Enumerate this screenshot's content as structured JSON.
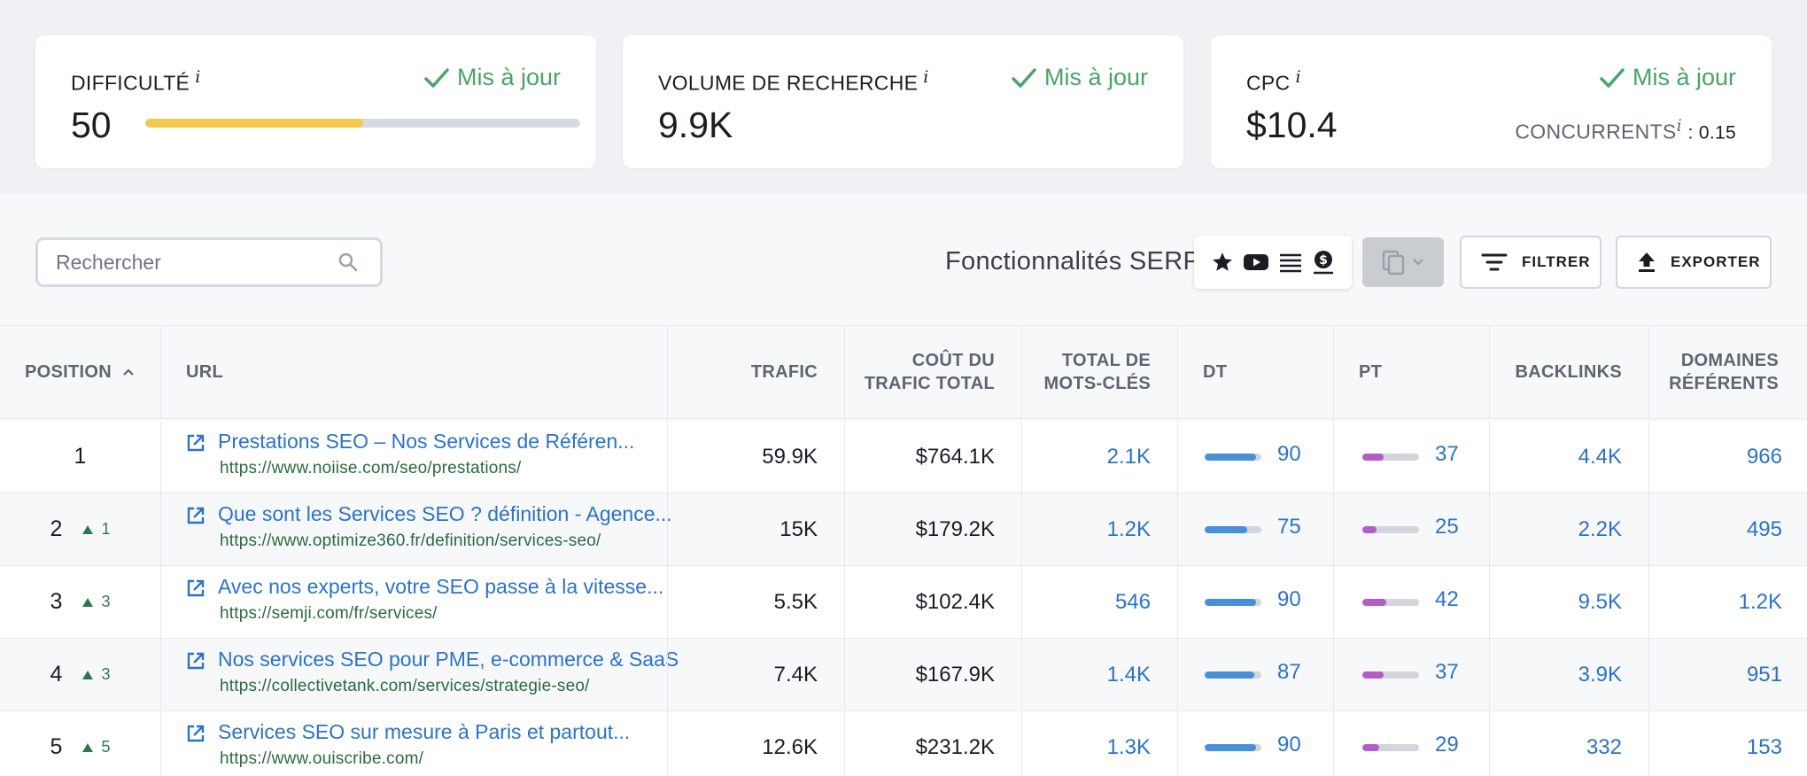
{
  "cards": {
    "difficulty": {
      "label": "DIFFICULTÉ",
      "info": "i",
      "status": "Mis à jour",
      "value": "50",
      "bar_fraction": 0.5
    },
    "volume": {
      "label": "VOLUME DE RECHERCHE",
      "info": "i",
      "status": "Mis à jour",
      "value": "9.9K"
    },
    "cpc": {
      "label": "CPC",
      "info": "i",
      "status": "Mis à jour",
      "value": "$10.4",
      "competitors_label": "CONCURRENTS",
      "competitors_info": "i",
      "competitors_value": ": 0.15"
    }
  },
  "toolbar": {
    "search_placeholder": "Rechercher",
    "serp_label": "Fonctionnalités SERP",
    "serp_icons": [
      "star-icon",
      "youtube-icon",
      "list-icon",
      "dollar-icon"
    ],
    "filter_label": "FILTRER",
    "export_label": "EXPORTER"
  },
  "table": {
    "headers": {
      "position": "POSITION",
      "url": "URL",
      "traffic": "TRAFIC",
      "traffic_cost_1": "COÛT DU",
      "traffic_cost_2": "TRAFIC TOTAL",
      "keywords_1": "TOTAL DE",
      "keywords_2": "MOTS-CLÉS",
      "dt": "DT",
      "pt": "PT",
      "backlinks": "BACKLINKS",
      "domains_1": "DOMAINES",
      "domains_2": "RÉFÉRENTS"
    },
    "rows": [
      {
        "position": "1",
        "change": "",
        "title": "Prestations SEO – Nos Services de Référen...",
        "url": "https://www.noiise.com/seo/prestations/",
        "traffic": "59.9K",
        "cost": "$764.1K",
        "keywords": "2.1K",
        "dt": "90",
        "dt_fraction": 0.9,
        "pt": "37",
        "pt_fraction": 0.37,
        "backlinks": "4.4K",
        "domains": "966"
      },
      {
        "position": "2",
        "change": "1",
        "title": "Que sont les Services SEO ? définition - Agence...",
        "url": "https://www.optimize360.fr/definition/services-seo/",
        "traffic": "15K",
        "cost": "$179.2K",
        "keywords": "1.2K",
        "dt": "75",
        "dt_fraction": 0.75,
        "pt": "25",
        "pt_fraction": 0.25,
        "backlinks": "2.2K",
        "domains": "495"
      },
      {
        "position": "3",
        "change": "3",
        "title": "Avec nos experts, votre SEO passe à la vitesse...",
        "url": "https://semji.com/fr/services/",
        "traffic": "5.5K",
        "cost": "$102.4K",
        "keywords": "546",
        "dt": "90",
        "dt_fraction": 0.9,
        "pt": "42",
        "pt_fraction": 0.42,
        "backlinks": "9.5K",
        "domains": "1.2K"
      },
      {
        "position": "4",
        "change": "3",
        "title": "Nos services SEO pour PME, e-commerce & SaaS",
        "url": "https://collectivetank.com/services/strategie-seo/",
        "traffic": "7.4K",
        "cost": "$167.9K",
        "keywords": "1.4K",
        "dt": "87",
        "dt_fraction": 0.87,
        "pt": "37",
        "pt_fraction": 0.37,
        "backlinks": "3.9K",
        "domains": "951"
      },
      {
        "position": "5",
        "change": "5",
        "title": "Services SEO sur mesure à Paris et partout...",
        "url": "https://www.ouiscribe.com/",
        "traffic": "12.6K",
        "cost": "$231.2K",
        "keywords": "1.3K",
        "dt": "90",
        "dt_fraction": 0.9,
        "pt": "29",
        "pt_fraction": 0.29,
        "backlinks": "332",
        "domains": "153"
      }
    ]
  },
  "colors": {
    "accent_blue": "#2b73c7",
    "updated_green": "#4aa368",
    "difficulty_yellow": "#f2c94c",
    "dt_blue": "#4a90d9",
    "pt_purple": "#b25ec8"
  }
}
